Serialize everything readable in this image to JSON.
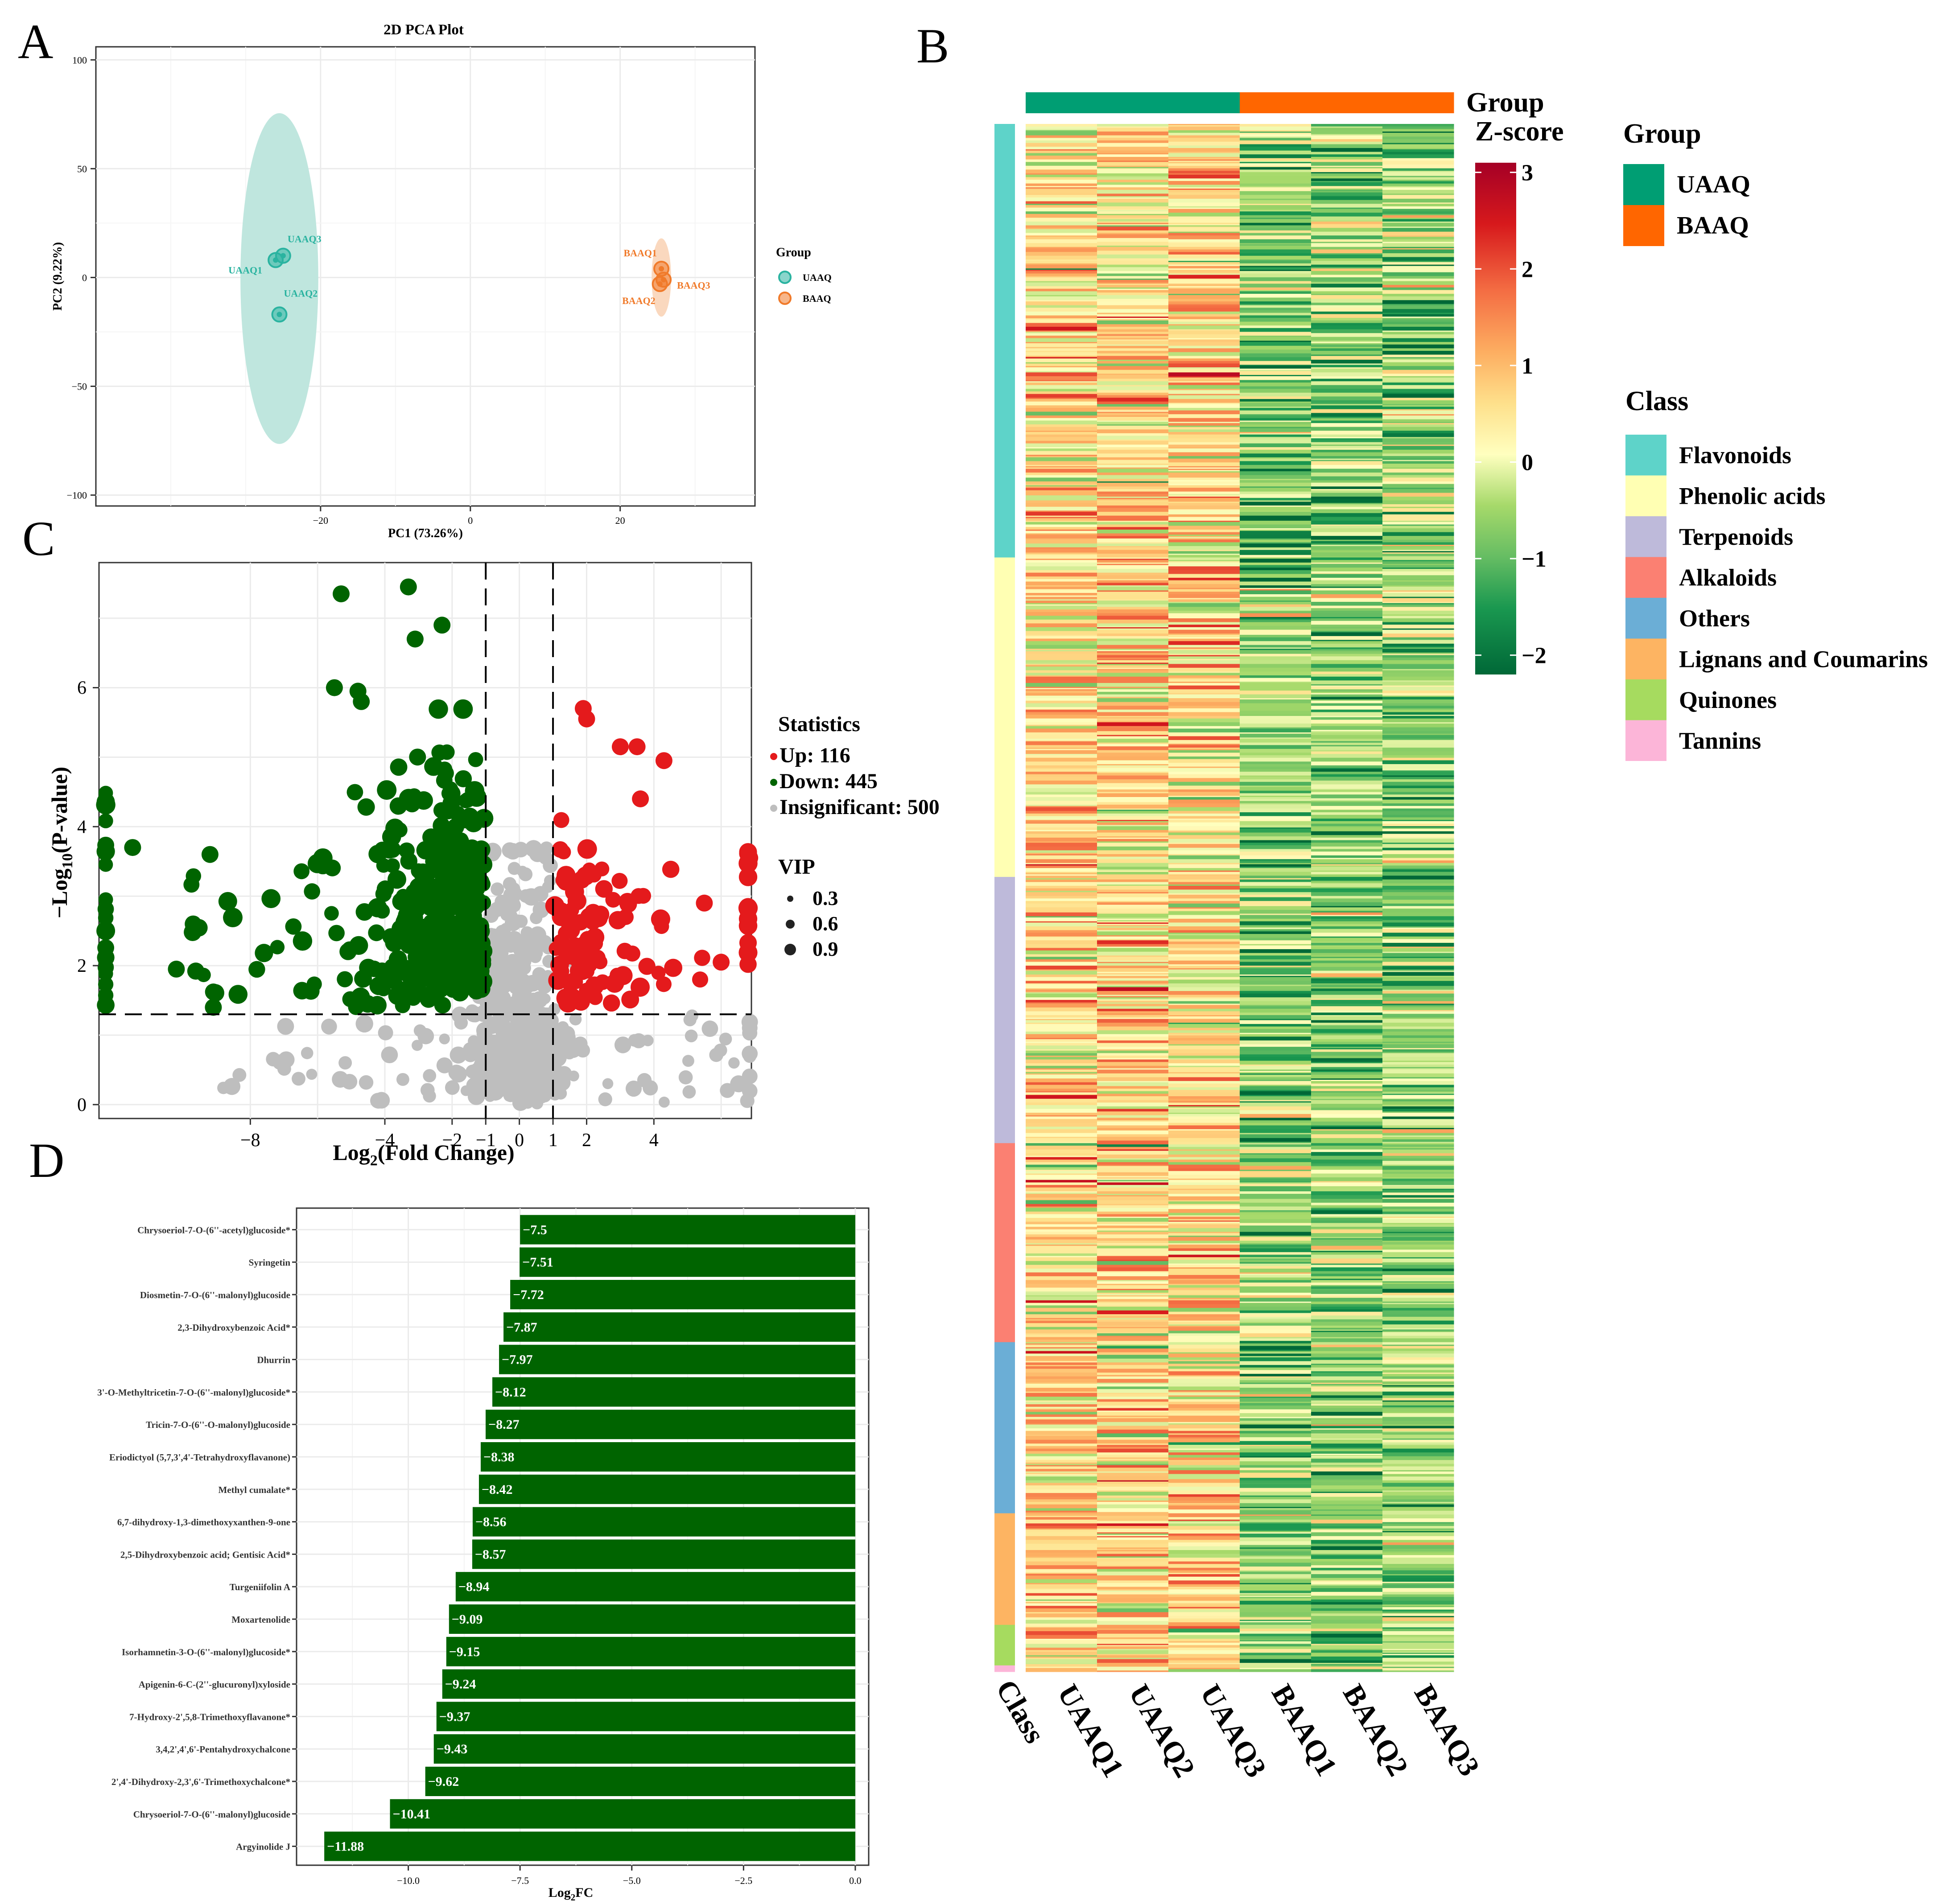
{
  "panel_labels": {
    "a": "A",
    "b": "B",
    "c": "C",
    "d": "D"
  },
  "colors": {
    "uaaq": "#009E73",
    "baaq": "#FF6600",
    "pca_uaaq": "#2AB3A0",
    "pca_baaq": "#F07A2A",
    "pca_ellipse_uaaq": "#BFE6DE",
    "pca_ellipse_baaq": "#FAD8BE",
    "up": "#E41A1C",
    "down": "#006400",
    "insig": "#BEBEBE",
    "bar": "#006400",
    "grid": "#EBEBEB"
  },
  "chart_data": [
    {
      "id": "pca",
      "type": "scatter",
      "title": "2D PCA Plot",
      "xlabel": "PC1 (73.26%)",
      "ylabel": "PC2 (9.22%)",
      "xlim": [
        -50,
        38
      ],
      "ylim": [
        -105,
        106
      ],
      "xticks": [
        -20,
        0,
        20
      ],
      "yticks": [
        -100,
        -50,
        0,
        50,
        100
      ],
      "legend_title": "Group",
      "groups": [
        {
          "name": "UAAQ",
          "color_key": "pca_uaaq",
          "ellipse": {
            "cx": -25.5,
            "cy": -0.5,
            "rx": 5.2,
            "ry": 76
          },
          "points": [
            {
              "label": "UAAQ1",
              "x": -26,
              "y": 8
            },
            {
              "label": "UAAQ3",
              "x": -25,
              "y": 10
            },
            {
              "label": "UAAQ2",
              "x": -25.5,
              "y": -17
            }
          ]
        },
        {
          "name": "BAAQ",
          "color_key": "pca_baaq",
          "ellipse": {
            "cx": 25.5,
            "cy": 0,
            "rx": 1.3,
            "ry": 18
          },
          "points": [
            {
              "label": "BAAQ1",
              "x": 25.5,
              "y": 4
            },
            {
              "label": "BAAQ3",
              "x": 25.8,
              "y": -1
            },
            {
              "label": "BAAQ2",
              "x": 25.3,
              "y": -3
            }
          ]
        }
      ]
    },
    {
      "id": "heatmap",
      "type": "heatmap",
      "columns": [
        "UAAQ1",
        "UAAQ2",
        "UAAQ3",
        "BAAQ1",
        "BAAQ2",
        "BAAQ3"
      ],
      "column_groups": [
        "UAAQ",
        "UAAQ",
        "UAAQ",
        "BAAQ",
        "BAAQ",
        "BAAQ"
      ],
      "class_axis_label": "Class",
      "group_annotation_label": "Group",
      "colorbar": {
        "title": "Z-score",
        "ticks": [
          3,
          2,
          1,
          0,
          -1,
          -2
        ],
        "min": -2.2,
        "max": 3.1
      },
      "group_legend": {
        "title": "Group",
        "items": [
          {
            "label": "UAAQ",
            "color": "#009E73"
          },
          {
            "label": "BAAQ",
            "color": "#FF6600"
          }
        ]
      },
      "class_legend": {
        "title": "Class",
        "items": [
          {
            "label": "Flavonoids",
            "color": "#5ED3C9",
            "n": 342
          },
          {
            "label": "Phenolic acids",
            "color": "#FFFFB3",
            "n": 252
          },
          {
            "label": "Terpenoids",
            "color": "#BEBADA",
            "n": 210
          },
          {
            "label": "Alkaloids",
            "color": "#FB8072",
            "n": 157
          },
          {
            "label": "Others",
            "color": "#6BAED6",
            "n": 135
          },
          {
            "label": "Lignans and Coumarins",
            "color": "#FDB462",
            "n": 88
          },
          {
            "label": "Quinones",
            "color": "#A6DB5F",
            "n": 32
          },
          {
            "label": "Tannins",
            "color": "#FCB5D8",
            "n": 5
          }
        ]
      },
      "n_rows": 1221,
      "mean_zscore_by_group": {
        "UAAQ": 0.6,
        "BAAQ": -0.7
      }
    },
    {
      "id": "volcano",
      "type": "scatter",
      "xlabel_main": "Log",
      "xlabel_sub": "2",
      "xlabel_rest": "(Fold Change)",
      "ylabel_main": "−Log",
      "ylabel_sub": "10",
      "ylabel_rest": "(P-value)",
      "xlim": [
        -12.5,
        6.9
      ],
      "ylim": [
        -0.2,
        7.8
      ],
      "xticks": [
        {
          "v": -8,
          "t": "−8"
        },
        {
          "v": -4,
          "t": "−4"
        },
        {
          "v": -2,
          "t": "−2"
        },
        {
          "v": -1,
          "t": "−1"
        },
        {
          "v": 0,
          "t": "0"
        },
        {
          "v": 1,
          "t": "1"
        },
        {
          "v": 2,
          "t": "2"
        },
        {
          "v": 4,
          "t": "4"
        }
      ],
      "yticks": [
        0,
        2,
        4,
        6
      ],
      "fc_threshold": [
        -1,
        1
      ],
      "p_threshold": 1.3,
      "legend": {
        "statistics_title": "Statistics",
        "vip_title": "VIP",
        "items": [
          {
            "key": "up",
            "label": "Up: 116"
          },
          {
            "key": "down",
            "label": "Down: 445"
          },
          {
            "key": "insig",
            "label": "Insignificant: 500"
          }
        ],
        "vip_sizes": [
          "0.3",
          "0.6",
          "0.9"
        ]
      },
      "counts": {
        "up": 116,
        "down": 445,
        "insignificant": 500
      },
      "highlight_points": [
        {
          "x": -5.3,
          "y": 7.35,
          "g": "down"
        },
        {
          "x": -3.3,
          "y": 7.45,
          "g": "down"
        },
        {
          "x": -2.3,
          "y": 6.9,
          "g": "down"
        },
        {
          "x": -3.1,
          "y": 6.7,
          "g": "down"
        },
        {
          "x": -5.5,
          "y": 6.0,
          "g": "down"
        },
        {
          "x": -4.8,
          "y": 5.95,
          "g": "down"
        },
        {
          "x": -4.7,
          "y": 5.8,
          "g": "down"
        },
        {
          "x": -11.5,
          "y": 3.7,
          "g": "down"
        },
        {
          "x": -9.2,
          "y": 3.6,
          "g": "down"
        },
        {
          "x": -9.7,
          "y": 2.6,
          "g": "down"
        },
        {
          "x": -10.2,
          "y": 1.95,
          "g": "down"
        },
        {
          "x": -9.1,
          "y": 1.4,
          "g": "down"
        },
        {
          "x": 1.9,
          "y": 5.7,
          "g": "up"
        },
        {
          "x": 2.0,
          "y": 5.55,
          "g": "up"
        },
        {
          "x": 3.0,
          "y": 5.15,
          "g": "up"
        },
        {
          "x": 3.5,
          "y": 5.15,
          "g": "up"
        },
        {
          "x": 4.3,
          "y": 4.95,
          "g": "up"
        },
        {
          "x": 3.6,
          "y": 4.4,
          "g": "up"
        },
        {
          "x": 6.9,
          "y": 3.55,
          "g": "up"
        },
        {
          "x": 5.5,
          "y": 2.9,
          "g": "up"
        },
        {
          "x": 6.0,
          "y": 2.05,
          "g": "up"
        }
      ]
    },
    {
      "id": "bar",
      "type": "bar",
      "orientation": "horizontal",
      "xlabel_main": "Log",
      "xlabel_sub": "2",
      "xlabel_rest": "FC",
      "xlim": [
        -12.5,
        0.3
      ],
      "xticks": [
        {
          "v": -10,
          "t": "−10.0"
        },
        {
          "v": -7.5,
          "t": "−7.5"
        },
        {
          "v": -5,
          "t": "−5.0"
        },
        {
          "v": -2.5,
          "t": "−2.5"
        },
        {
          "v": 0,
          "t": "0.0"
        }
      ],
      "categories": [
        "Chrysoeriol-7-O-(6''-acetyl)glucoside*",
        "Syringetin",
        "Diosmetin-7-O-(6''-malonyl)glucoside",
        "2,3-Dihydroxybenzoic Acid*",
        "Dhurrin",
        "3'-O-Methyltricetin-7-O-(6''-malonyl)glucoside*",
        "Tricin-7-O-(6''-O-malonyl)glucoside",
        "Eriodictyol (5,7,3',4'-Tetrahydroxyflavanone)",
        "Methyl cumalate*",
        "6,7-dihydroxy-1,3-dimethoxyxanthen-9-one",
        "2,5-Dihydroxybenzoic acid; Gentisic Acid*",
        "Turgeniifolin A",
        "Moxartenolide",
        "Isorhamnetin-3-O-(6''-malonyl)glucoside*",
        "Apigenin-6-C-(2''-glucuronyl)xyloside",
        "7-Hydroxy-2',5,8-Trimethoxyflavanone*",
        "3,4,2',4',6'-Pentahydroxychalcone",
        "2',4'-Dihydroxy-2,3',6'-Trimethoxychalcone*",
        "Chrysoeriol-7-O-(6''-malonyl)glucoside",
        "Argyinolide J"
      ],
      "values": [
        -7.5,
        -7.51,
        -7.72,
        -7.87,
        -7.97,
        -8.12,
        -8.27,
        -8.38,
        -8.42,
        -8.56,
        -8.57,
        -8.94,
        -9.09,
        -9.15,
        -9.24,
        -9.37,
        -9.43,
        -9.62,
        -10.41,
        -11.88
      ],
      "value_labels": [
        "−7.5",
        "−7.51",
        "−7.72",
        "−7.87",
        "−7.97",
        "−8.12",
        "−8.27",
        "−8.38",
        "−8.42",
        "−8.56",
        "−8.57",
        "−8.94",
        "−9.09",
        "−9.15",
        "−9.24",
        "−9.37",
        "−9.43",
        "−9.62",
        "−10.41",
        "−11.88"
      ]
    }
  ]
}
